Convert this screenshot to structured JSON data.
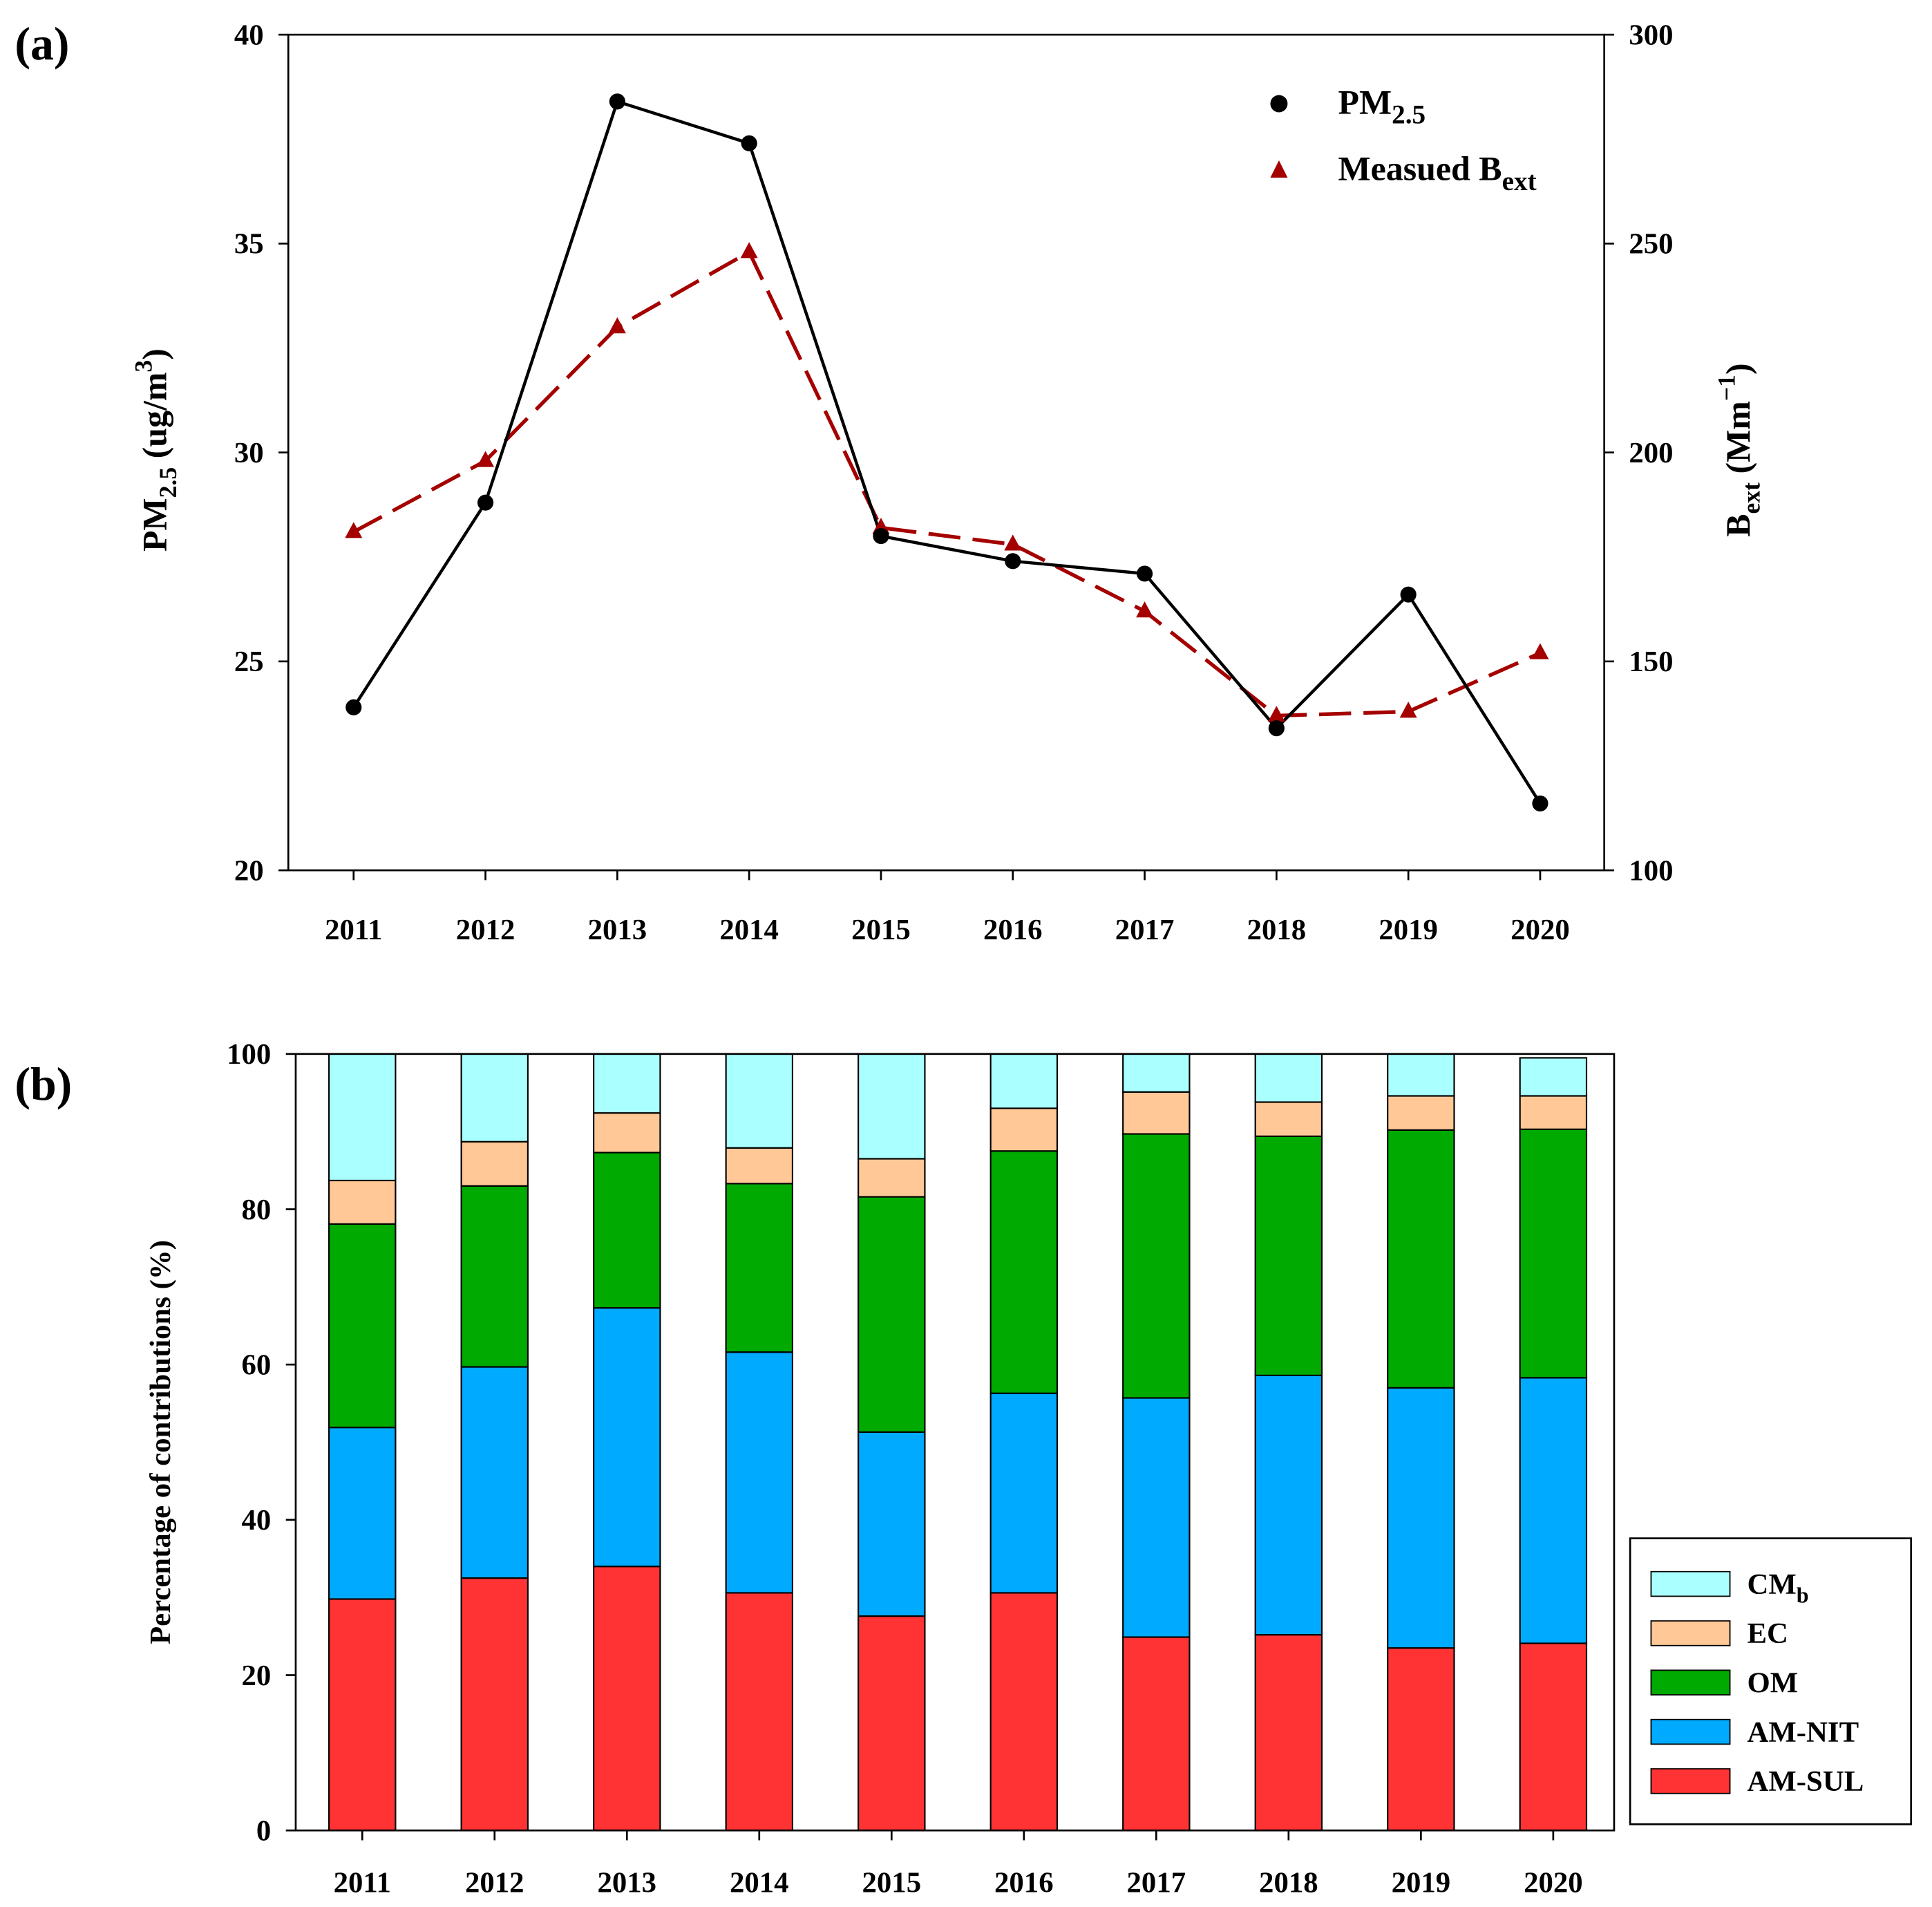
{
  "chart_data": [
    {
      "type": "line",
      "panel_label": "(a)",
      "categories": [
        "2011",
        "2012",
        "2013",
        "2014",
        "2015",
        "2016",
        "2017",
        "2018",
        "2019",
        "2020"
      ],
      "ylabel": {
        "main": "PM",
        "sub": "2.5",
        "rest": " (ug/m",
        "sup": "3",
        "end": ")"
      },
      "y2label": {
        "main": "B",
        "sub": "ext",
        "rest": " (Mm",
        "sup": "−1",
        "end": ")"
      },
      "ylim": [
        20,
        40
      ],
      "yticks": [
        "20",
        "25",
        "30",
        "35",
        "40"
      ],
      "y2lim": [
        100,
        300
      ],
      "y2ticks": [
        "100",
        "150",
        "200",
        "250",
        "300"
      ],
      "legend_position": "top-right",
      "series": [
        {
          "name": "PM",
          "name_sub": "2.5",
          "axis": "left",
          "color": "#000000",
          "marker": "circle",
          "style": "solid",
          "values": [
            23.9,
            28.8,
            38.4,
            37.4,
            28.0,
            27.4,
            27.1,
            23.4,
            26.6,
            21.6
          ]
        },
        {
          "name": "Measued B",
          "name_sub": "ext",
          "axis": "right",
          "color": "#A50000",
          "marker": "triangle",
          "style": "dashed",
          "values": [
            181,
            198,
            230,
            248,
            182,
            178,
            162,
            137,
            138,
            152
          ]
        }
      ]
    },
    {
      "type": "bar",
      "stacked": true,
      "panel_label": "(b)",
      "categories": [
        "2011",
        "2012",
        "2013",
        "2014",
        "2015",
        "2016",
        "2017",
        "2018",
        "2019",
        "2020"
      ],
      "ylabel": "Percentage of contributions (%)",
      "ylim": [
        0,
        100
      ],
      "yticks": [
        "0",
        "20",
        "40",
        "60",
        "80",
        "100"
      ],
      "legend_position": "right",
      "series": [
        {
          "name": "AM-SUL",
          "color": "#FF3333",
          "values": [
            29.8,
            32.5,
            34.0,
            30.6,
            27.6,
            30.6,
            24.9,
            25.2,
            23.5,
            24.1
          ]
        },
        {
          "name": "AM-NIT",
          "color": "#00AAFF",
          "values": [
            22.1,
            27.2,
            33.3,
            31.0,
            23.7,
            25.7,
            30.8,
            33.4,
            33.5,
            34.2
          ]
        },
        {
          "name": "OM",
          "color": "#00AA00",
          "values": [
            26.2,
            23.3,
            20.0,
            21.7,
            30.3,
            31.2,
            34.0,
            30.8,
            33.2,
            32.0
          ]
        },
        {
          "name": "EC",
          "color": "#FFC896",
          "values": [
            5.6,
            5.7,
            5.1,
            4.6,
            4.9,
            5.5,
            5.4,
            4.4,
            4.4,
            4.3
          ]
        },
        {
          "name": "CM",
          "name_sub": "b",
          "color": "#AAFFFF",
          "values": [
            16.3,
            11.3,
            7.6,
            12.1,
            13.5,
            7.0,
            4.9,
            6.2,
            5.4,
            4.9
          ]
        }
      ]
    }
  ]
}
